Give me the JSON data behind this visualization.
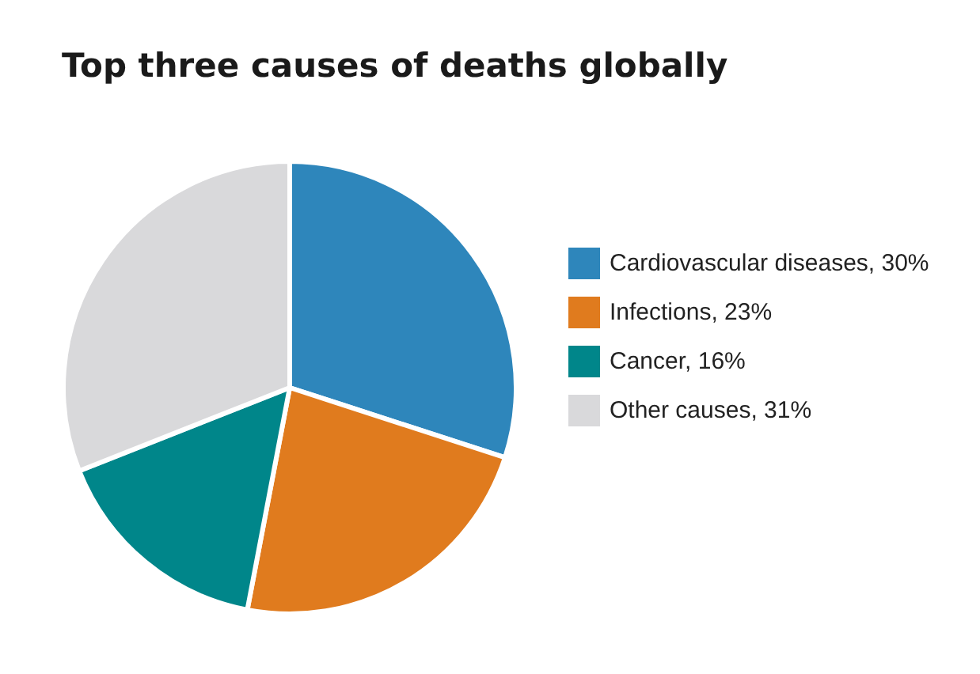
{
  "chart_data": {
    "type": "pie",
    "title": "Top three causes of deaths globally",
    "categories": [
      "Cardiovascular diseases",
      "Infections",
      "Cancer",
      "Other causes"
    ],
    "values": [
      30,
      23,
      16,
      31
    ],
    "value_labels": [
      "30%",
      "23%",
      "16%",
      "31%"
    ],
    "colors": [
      "#2e86bb",
      "#e07b1e",
      "#00868a",
      "#d9d9db"
    ],
    "legend": "right"
  }
}
